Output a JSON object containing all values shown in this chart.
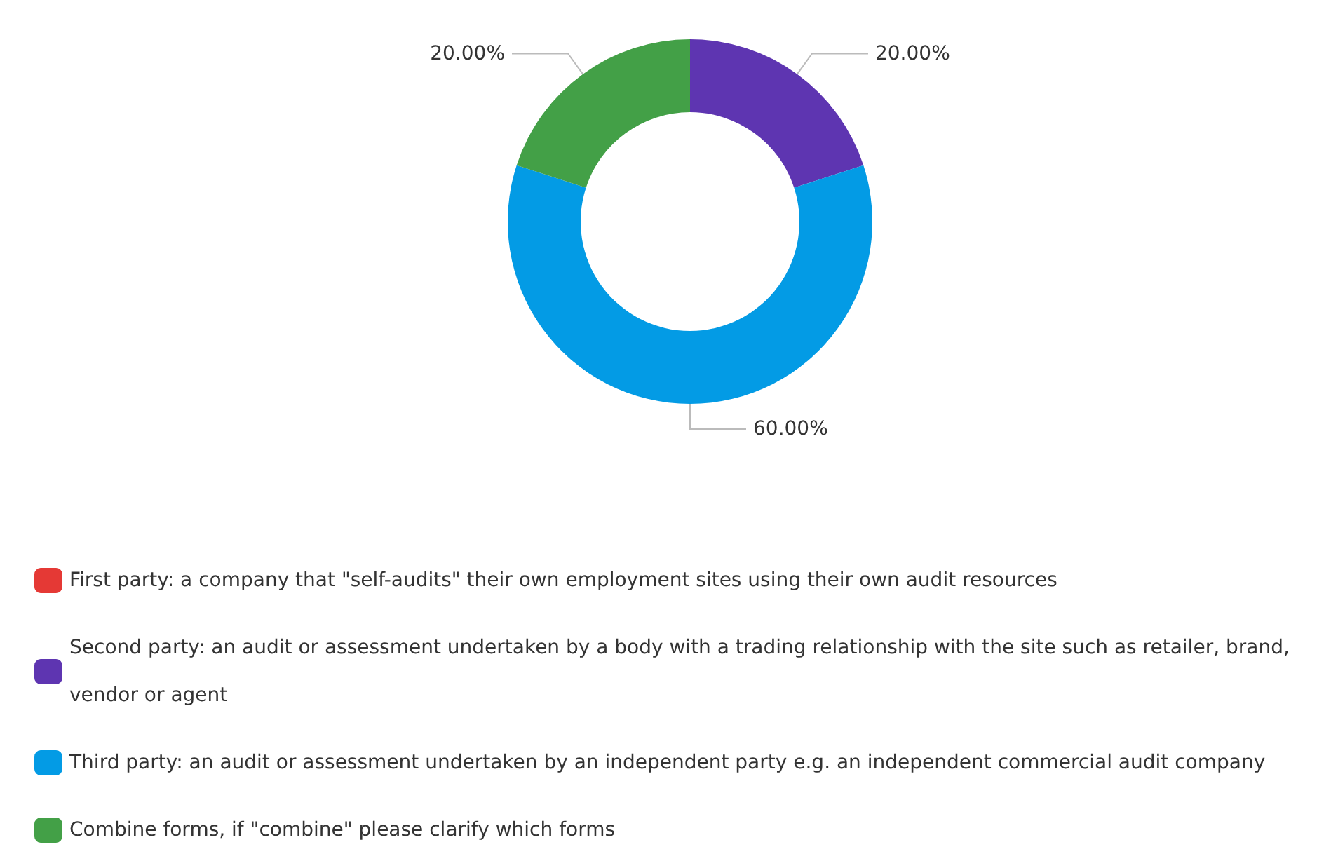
{
  "chart_data": {
    "type": "donut",
    "categories": [
      "First party: a company that \"self-audits\" their own employment sites using their own audit resources",
      "Second party: an audit or assessment undertaken by a body with a trading relationship with the site such as retailer, brand, vendor or agent",
      "Third party: an audit or assessment undertaken by an independent party e.g. an independent commercial audit company",
      "Combine forms, if \"combine\" please clarify which forms"
    ],
    "values": [
      0,
      20,
      60,
      20
    ],
    "colors": [
      "#e53935",
      "#5e35b1",
      "#039be5",
      "#43a047"
    ],
    "value_labels": [
      null,
      "20.00%",
      "60.00%",
      "20.00%"
    ],
    "legend": "bottom"
  }
}
